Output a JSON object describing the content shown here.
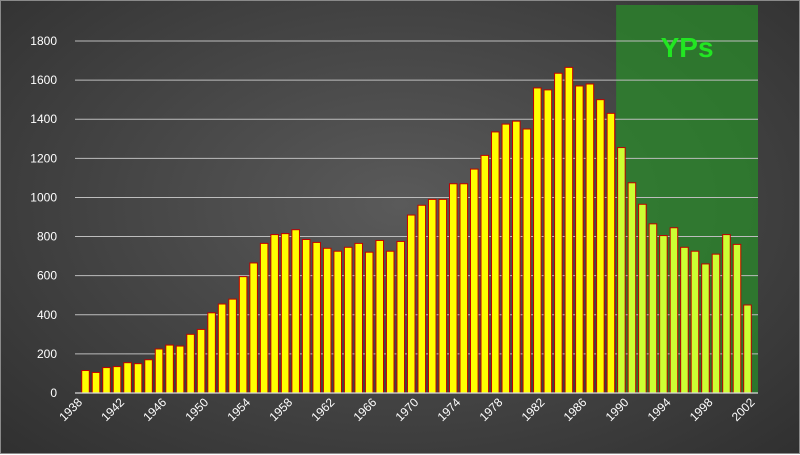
{
  "chart_data": {
    "type": "bar",
    "title": "",
    "xlabel": "",
    "ylabel": "",
    "x": [
      1939,
      1940,
      1941,
      1942,
      1943,
      1944,
      1945,
      1946,
      1947,
      1948,
      1949,
      1950,
      1951,
      1952,
      1953,
      1954,
      1955,
      1956,
      1957,
      1958,
      1959,
      1960,
      1961,
      1962,
      1963,
      1964,
      1965,
      1966,
      1967,
      1968,
      1969,
      1970,
      1971,
      1972,
      1973,
      1974,
      1975,
      1976,
      1977,
      1978,
      1979,
      1980,
      1981,
      1982,
      1983,
      1984,
      1985,
      1986,
      1987,
      1988,
      1989,
      1990,
      1991,
      1992,
      1993,
      1994,
      1995,
      1996,
      1997,
      1998,
      1999,
      2000,
      2001,
      2002
    ],
    "values": [
      115,
      105,
      130,
      135,
      155,
      150,
      170,
      225,
      245,
      240,
      300,
      325,
      410,
      455,
      480,
      595,
      665,
      765,
      810,
      815,
      835,
      785,
      770,
      740,
      725,
      745,
      765,
      720,
      780,
      725,
      775,
      910,
      960,
      990,
      990,
      1070,
      1070,
      1145,
      1215,
      1335,
      1375,
      1390,
      1350,
      1560,
      1550,
      1635,
      1665,
      1570,
      1580,
      1500,
      1430,
      1255,
      1075,
      965,
      865,
      805,
      845,
      745,
      725,
      660,
      710,
      810,
      760,
      450
    ],
    "x_ticks": [
      "1938",
      "1942",
      "1946",
      "1950",
      "1954",
      "1958",
      "1962",
      "1966",
      "1970",
      "1974",
      "1978",
      "1982",
      "1986",
      "1990",
      "1994",
      "1998",
      "2002"
    ],
    "y_ticks": [
      "0",
      "200",
      "400",
      "600",
      "800",
      "1000",
      "1200",
      "1400",
      "1600",
      "1800"
    ],
    "ylim": [
      0,
      1800
    ],
    "xlim": [
      1938,
      2003
    ],
    "grid": true,
    "highlight": {
      "label": "YPs",
      "from": 1990,
      "to": 2003,
      "color": "#2a8a2a"
    },
    "colors": {
      "bar_fill": "#ffff00",
      "bar_edge": "#c00000",
      "highlight_bar_fill": "#ccff33",
      "highlight_text": "#22e622"
    }
  }
}
